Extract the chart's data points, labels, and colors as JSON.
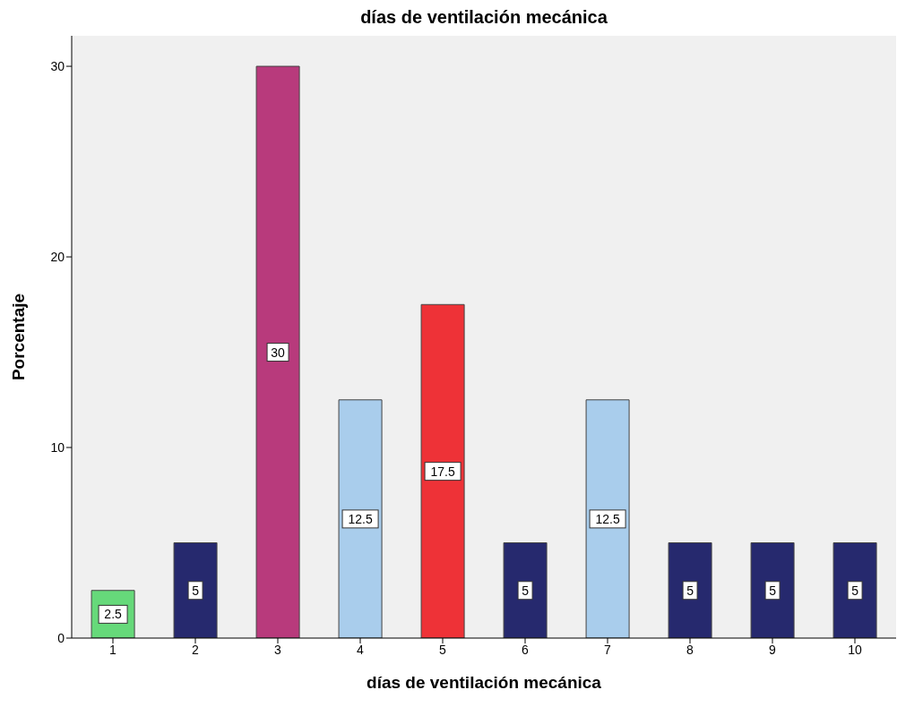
{
  "chart_data": {
    "type": "bar",
    "title": "días de ventilación mecánica",
    "xlabel": "días de ventilación mecánica",
    "ylabel": "Porcentaje",
    "categories": [
      "1",
      "2",
      "3",
      "4",
      "5",
      "6",
      "7",
      "8",
      "9",
      "10"
    ],
    "values": [
      2.5,
      5,
      30,
      12.5,
      17.5,
      5,
      12.5,
      5,
      5,
      5
    ],
    "colors": [
      "#66d97a",
      "#26296e",
      "#b83a7c",
      "#a9cdec",
      "#ee3237",
      "#26296e",
      "#a9cdec",
      "#26296e",
      "#26296e",
      "#26296e"
    ],
    "ylim": [
      0,
      31.6
    ],
    "yticks": [
      0,
      10,
      20,
      30
    ],
    "grid": false,
    "data_labels": true
  }
}
